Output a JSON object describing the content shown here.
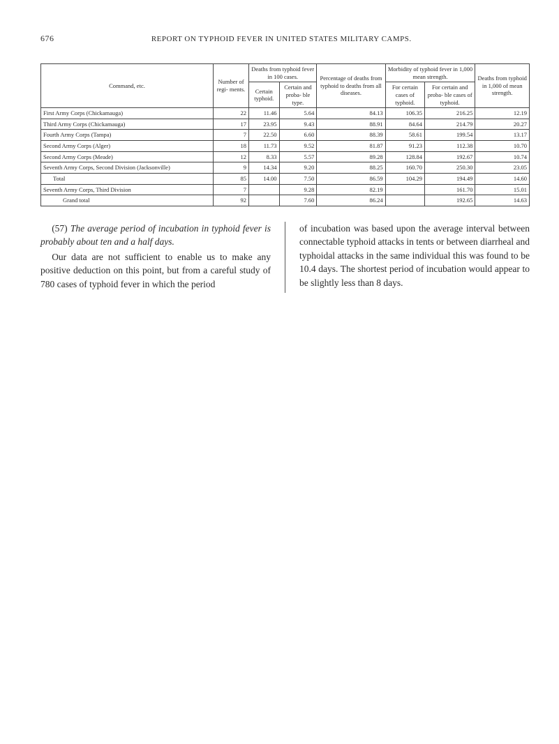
{
  "page": {
    "number": "676",
    "running_head": "REPORT ON TYPHOID FEVER IN UNITED STATES MILITARY CAMPS."
  },
  "table": {
    "headers": {
      "command": "Command, etc.",
      "number_regiments": "Number of regi-\nments.",
      "deaths_group": "Deaths from typhoid fever in 100 cases.",
      "deaths_certain": "Certain typhoid.",
      "deaths_probable": "Certain and proba-\nble type.",
      "percentage": "Percentage of deaths from typhoid to deaths from all diseases.",
      "morbidity_group": "Morbidity of typhoid fever in 1,000 mean strength.",
      "morbidity_certain": "For certain cases of typhoid.",
      "morbidity_probable": "For certain and proba-\nble cases of typhoid.",
      "deaths_strength": "Deaths from typhoid in 1,000 of mean strength."
    },
    "rows": [
      {
        "label": "First Army Corps (Chickamauga)",
        "indent": 0,
        "n": "22",
        "d1": "11.46",
        "d2": "5.64",
        "pct": "84.13",
        "m1": "106.35",
        "m2": "216.25",
        "ds": "12.19"
      },
      {
        "label": "Third Army Corps (Chickamauga)",
        "indent": 0,
        "n": "17",
        "d1": "23.95",
        "d2": "9.43",
        "pct": "88.91",
        "m1": "84.64",
        "m2": "214.79",
        "ds": "20.27"
      },
      {
        "label": "Fourth Army Corps (Tampa)",
        "indent": 0,
        "n": "7",
        "d1": "22.50",
        "d2": "6.60",
        "pct": "88.39",
        "m1": "58.61",
        "m2": "199.54",
        "ds": "13.17"
      },
      {
        "label": "Second Army Corps (Alger)",
        "indent": 0,
        "n": "18",
        "d1": "11.73",
        "d2": "9.52",
        "pct": "81.87",
        "m1": "91.23",
        "m2": "112.38",
        "ds": "10.70"
      },
      {
        "label": "Second Army Corps (Meade)",
        "indent": 0,
        "n": "12",
        "d1": "8.33",
        "d2": "5.57",
        "pct": "89.28",
        "m1": "128.84",
        "m2": "192.67",
        "ds": "10.74"
      },
      {
        "label": "Seventh Army Corps, Second Division (Jacksonville)",
        "indent": 0,
        "n": "9",
        "d1": "14.34",
        "d2": "9.20",
        "pct": "88.25",
        "m1": "160.70",
        "m2": "250.30",
        "ds": "23.05"
      }
    ],
    "subtotal": [
      {
        "label": "Total",
        "indent": 1,
        "n": "85",
        "d1": "14.00",
        "d2": "7.50",
        "pct": "86.59",
        "m1": "104.29",
        "m2": "194.49",
        "ds": "14.60"
      },
      {
        "label": "Seventh Army Corps, Third Division",
        "indent": 0,
        "n": "7",
        "d1": "",
        "d2": "9.28",
        "pct": "82.19",
        "m1": "",
        "m2": "161.70",
        "ds": "15.01"
      }
    ],
    "grand": {
      "label": "Grand total",
      "indent": 2,
      "n": "92",
      "d1": "",
      "d2": "7.60",
      "pct": "86.24",
      "m1": "",
      "m2": "192.65",
      "ds": "14.63"
    }
  },
  "body": {
    "left": {
      "p1a": "(57) ",
      "p1b": "The average period of incubation in typhoid fever is probably about ten and a half days.",
      "p2": "Our data are not sufficient to enable us to make any positive deduction on this point, but from a careful study of 780 cases of typhoid fever in which the period"
    },
    "right": {
      "p1": "of incubation was based upon the average interval between connectable typhoid attacks in tents or between diarrheal and typhoidal attacks in the same individual this was found to be 10.4 days. The shortest period of incubation would appear to be slightly less than 8 days."
    }
  }
}
